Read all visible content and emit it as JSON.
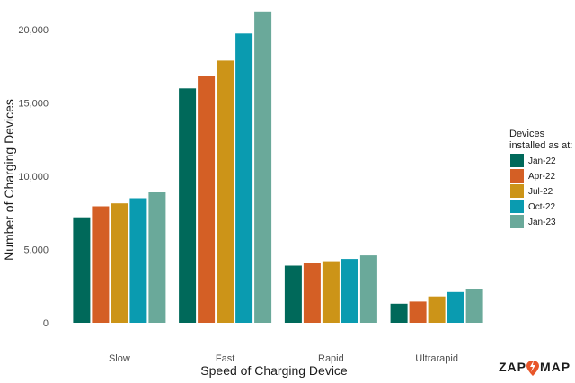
{
  "chart_data": {
    "type": "bar",
    "title": "",
    "xlabel": "Speed of Charging Device",
    "ylabel": "Number of Charging Devices",
    "ylim": [
      0,
      21300
    ],
    "yticks": [
      0,
      5000,
      10000,
      15000,
      20000
    ],
    "ytick_labels": [
      "0",
      "5,000",
      "10,000",
      "15,000",
      "20,000"
    ],
    "grid": false,
    "legend_title": [
      "Devices",
      "installed as at:"
    ],
    "legend_position": "right",
    "categories": [
      "Slow",
      "Fast",
      "Rapid",
      "Ultrarapid"
    ],
    "series": [
      {
        "name": "Jan-22",
        "color": "#00695a",
        "values": [
          7200,
          16000,
          3900,
          1300
        ]
      },
      {
        "name": "Apr-22",
        "color": "#d45f25",
        "values": [
          7950,
          16850,
          4050,
          1450
        ]
      },
      {
        "name": "Jul-22",
        "color": "#cc9418",
        "values": [
          8150,
          17900,
          4200,
          1800
        ]
      },
      {
        "name": "Oct-22",
        "color": "#0a9bb0",
        "values": [
          8500,
          19750,
          4350,
          2100
        ]
      },
      {
        "name": "Jan-23",
        "color": "#6aa99a",
        "values": [
          8900,
          21250,
          4600,
          2300
        ]
      }
    ]
  },
  "logo": {
    "text_left": "ZAP",
    "text_right": "MAP",
    "icon": "lightning-pin-icon",
    "accent": "#e8562a"
  }
}
